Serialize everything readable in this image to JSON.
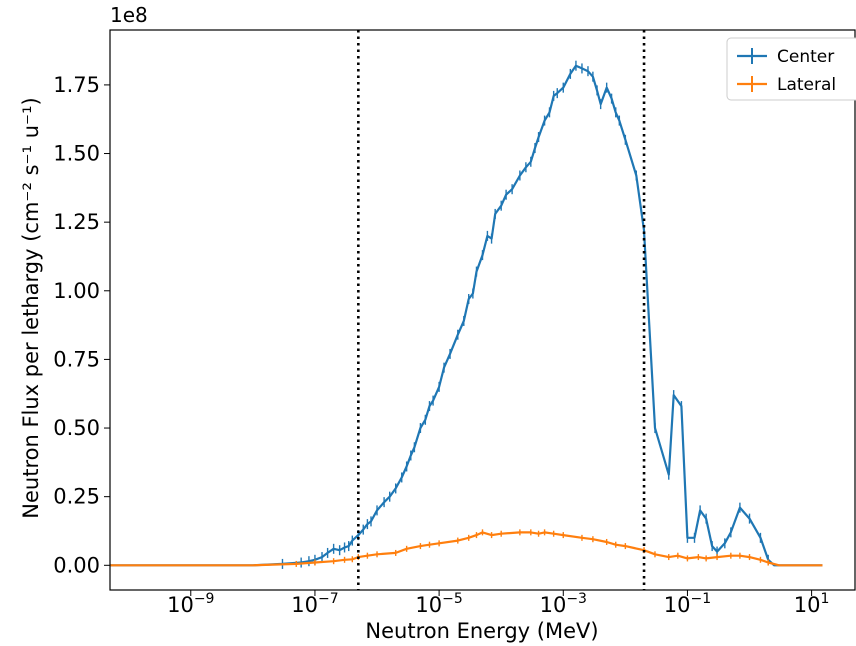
{
  "chart_data": {
    "type": "line",
    "title": "",
    "xlabel": "Neutron Energy (MeV)",
    "ylabel": "Neutron Flux per lethargy (cm⁻² s⁻¹ u⁻¹)",
    "xscale": "log",
    "xlim": [
      5e-11,
      50
    ],
    "ylim": [
      -0.09,
      1.95
    ],
    "y_offset_label": "1e8",
    "grid": false,
    "legend_position": "top-right",
    "x_ticks": [
      {
        "value": 1e-09,
        "base": "10",
        "exp": "−9"
      },
      {
        "value": 1e-07,
        "base": "10",
        "exp": "−7"
      },
      {
        "value": 1e-05,
        "base": "10",
        "exp": "−5"
      },
      {
        "value": 0.001,
        "base": "10",
        "exp": "−3"
      },
      {
        "value": 0.1,
        "base": "10",
        "exp": "−1"
      },
      {
        "value": 10,
        "base": "10",
        "exp": "1"
      }
    ],
    "y_ticks": [
      "0.00",
      "0.25",
      "0.50",
      "0.75",
      "1.00",
      "1.25",
      "1.50",
      "1.75"
    ],
    "y_tick_values": [
      0,
      0.25,
      0.5,
      0.75,
      1.0,
      1.25,
      1.5,
      1.75
    ],
    "vertical_lines": [
      5e-07,
      0.02
    ],
    "vertical_line_style": "dotted",
    "series": [
      {
        "name": "Center",
        "color": "#1f77b4",
        "x": [
          5e-11,
          1e-09,
          1e-08,
          3e-08,
          6e-08,
          8e-08,
          1e-07,
          1.3e-07,
          1.6e-07,
          2e-07,
          2.5e-07,
          3e-07,
          3.5e-07,
          4e-07,
          5e-07,
          6e-07,
          7e-07,
          8e-07,
          1e-06,
          1.3e-06,
          1.6e-06,
          2e-06,
          2.5e-06,
          3e-06,
          3.5e-06,
          4e-06,
          5e-06,
          6e-06,
          7e-06,
          8e-06,
          1e-05,
          1.2e-05,
          1.5e-05,
          2e-05,
          2.5e-05,
          3e-05,
          3.5e-05,
          4e-05,
          5e-05,
          6e-05,
          7e-05,
          8e-05,
          0.0001,
          0.00012,
          0.00015,
          0.0002,
          0.00025,
          0.0003,
          0.00035,
          0.0004,
          0.0005,
          0.0006,
          0.0007,
          0.0008,
          0.001,
          0.0013,
          0.0016,
          0.002,
          0.0025,
          0.003,
          0.0035,
          0.004,
          0.005,
          0.006,
          0.007,
          0.008,
          0.01,
          0.015,
          0.02,
          0.03,
          0.05,
          0.06,
          0.08,
          0.1,
          0.13,
          0.16,
          0.2,
          0.25,
          0.3,
          0.4,
          0.5,
          0.7,
          1.0,
          1.5,
          2.0,
          2.5,
          3.0,
          5.0,
          15.0
        ],
        "y": [
          0,
          0,
          0,
          0.005,
          0.01,
          0.015,
          0.02,
          0.03,
          0.045,
          0.06,
          0.055,
          0.065,
          0.07,
          0.09,
          0.11,
          0.13,
          0.15,
          0.16,
          0.2,
          0.23,
          0.25,
          0.28,
          0.32,
          0.36,
          0.4,
          0.43,
          0.5,
          0.53,
          0.58,
          0.6,
          0.65,
          0.72,
          0.77,
          0.84,
          0.89,
          0.97,
          0.99,
          1.07,
          1.13,
          1.2,
          1.19,
          1.28,
          1.31,
          1.35,
          1.37,
          1.42,
          1.45,
          1.47,
          1.52,
          1.56,
          1.62,
          1.65,
          1.71,
          1.72,
          1.74,
          1.79,
          1.82,
          1.81,
          1.8,
          1.78,
          1.73,
          1.68,
          1.74,
          1.7,
          1.65,
          1.62,
          1.55,
          1.42,
          1.22,
          0.5,
          0.33,
          0.62,
          0.58,
          0.1,
          0.1,
          0.2,
          0.17,
          0.07,
          0.05,
          0.08,
          0.12,
          0.21,
          0.17,
          0.1,
          0.02,
          0,
          0,
          0,
          0
        ]
      },
      {
        "name": "Lateral",
        "color": "#ff7f0e",
        "x": [
          5e-11,
          1e-09,
          1e-08,
          5e-08,
          1e-07,
          2e-07,
          3e-07,
          4e-07,
          5e-07,
          7e-07,
          1e-06,
          2e-06,
          3e-06,
          5e-06,
          7e-06,
          1e-05,
          2e-05,
          3e-05,
          4e-05,
          5e-05,
          7e-05,
          0.0001,
          0.0002,
          0.0003,
          0.0004,
          0.0005,
          0.0007,
          0.001,
          0.002,
          0.003,
          0.005,
          0.007,
          0.01,
          0.02,
          0.03,
          0.05,
          0.07,
          0.1,
          0.15,
          0.2,
          0.3,
          0.5,
          0.7,
          1.0,
          1.5,
          2.0,
          3.0,
          5.0,
          15.0
        ],
        "y": [
          0,
          0,
          0,
          0.005,
          0.01,
          0.015,
          0.02,
          0.022,
          0.03,
          0.035,
          0.04,
          0.045,
          0.06,
          0.07,
          0.075,
          0.08,
          0.09,
          0.1,
          0.11,
          0.12,
          0.11,
          0.115,
          0.12,
          0.12,
          0.115,
          0.12,
          0.115,
          0.11,
          0.1,
          0.095,
          0.085,
          0.075,
          0.07,
          0.055,
          0.04,
          0.03,
          0.035,
          0.025,
          0.03,
          0.025,
          0.03,
          0.035,
          0.035,
          0.03,
          0.02,
          0.01,
          0,
          0,
          0
        ]
      }
    ]
  }
}
